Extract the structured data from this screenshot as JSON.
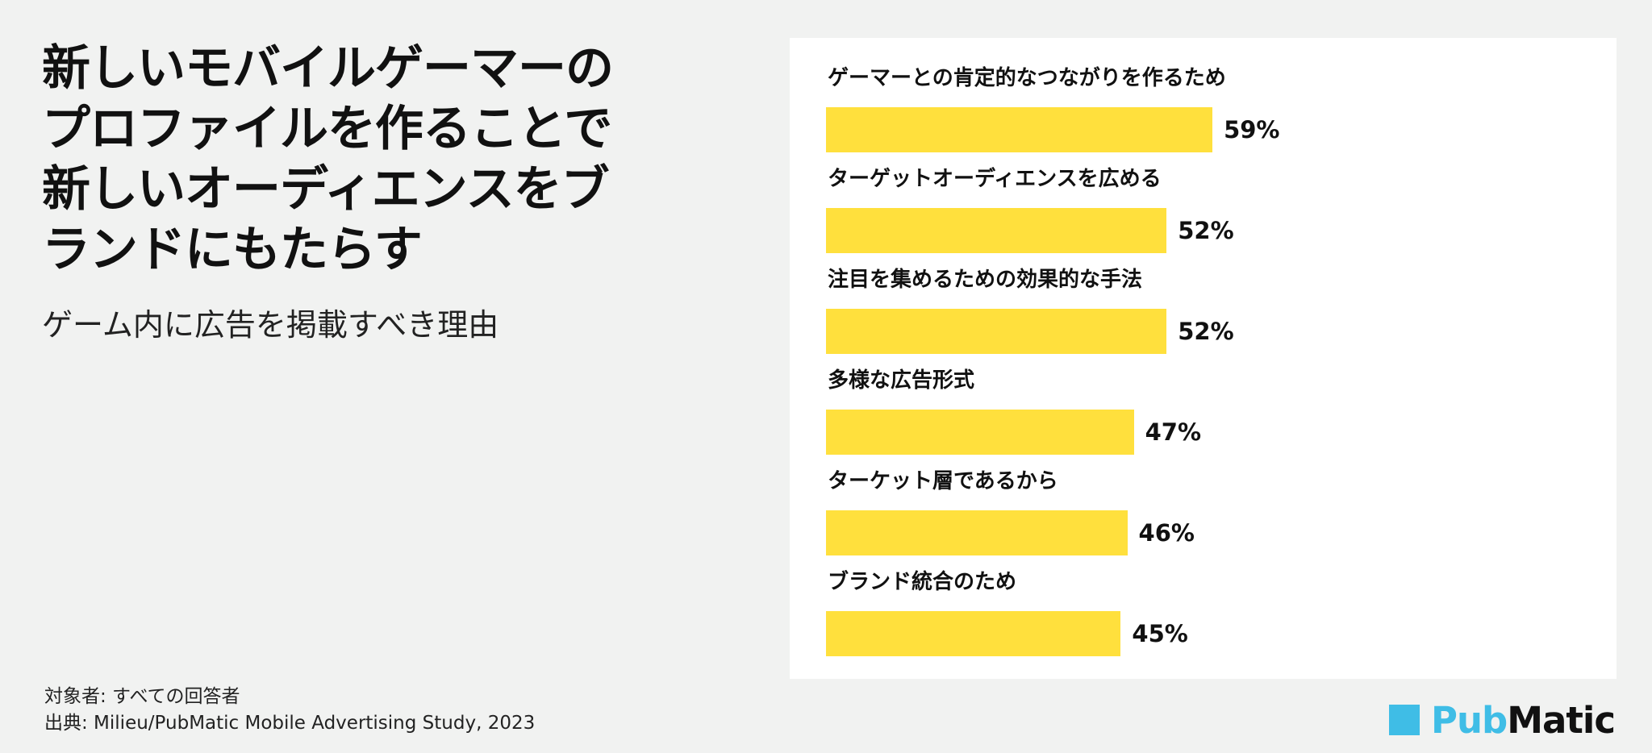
{
  "title": "新しいモバイルゲーマーのプロファイルを作ることで新しいオーディエンスをブランドにもたらす",
  "subtitle": "ゲーム内に広告を掲載すべき理由",
  "footer": {
    "audience": "対象者: すべての回答者",
    "source": "出典: Milieu/PubMatic Mobile Advertising Study, 2023"
  },
  "logo": {
    "pub": "Pub",
    "matic": "Matic",
    "color": "#3fbde6"
  },
  "bar_color": "#ffe03d",
  "chart_data": {
    "type": "bar",
    "orientation": "horizontal",
    "categories": [
      "ゲーマーとの肯定的なつながりを作るため",
      "ターゲットオーディエンスを広める",
      "注目を集めるための効果的な手法",
      "多様な広告形式",
      "ターケット層であるから",
      "ブランド統合のため"
    ],
    "values": [
      59,
      52,
      52,
      47,
      46,
      45
    ],
    "value_labels": [
      "59%",
      "52%",
      "52%",
      "47%",
      "46%",
      "45%"
    ],
    "xlim": [
      0,
      100
    ],
    "grid": false
  }
}
